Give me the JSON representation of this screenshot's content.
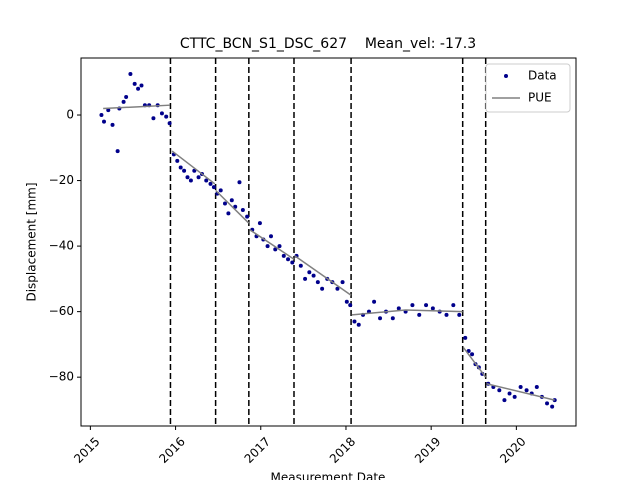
{
  "chart_data": {
    "type": "scatter",
    "title": "CTTC_BCN_S1_DSC_627    Mean_vel: -17.3",
    "x_label": "Measurement Date",
    "y_label": "Displacement [mm]",
    "xlim": [
      2014.89,
      2020.7
    ],
    "ylim": [
      -94.9,
      17.4
    ],
    "xticks": [
      2015,
      2016,
      2017,
      2018,
      2019,
      2020
    ],
    "yticks": [
      {
        "value": -80,
        "label": "−80"
      },
      {
        "value": -60,
        "label": "−60"
      },
      {
        "value": -40,
        "label": "−40"
      },
      {
        "value": -20,
        "label": "−20"
      },
      0
    ],
    "legend": "upper right",
    "vlines": [
      2015.94,
      2016.47,
      2016.86,
      2017.39,
      2018.06,
      2019.37,
      2019.64
    ],
    "series": [
      {
        "name": "Data",
        "color": "#00008b",
        "x": [
          2015.13,
          2015.16,
          2015.21,
          2015.26,
          2015.32,
          2015.34,
          2015.39,
          2015.42,
          2015.47,
          2015.52,
          2015.56,
          2015.6,
          2015.64,
          2015.69,
          2015.74,
          2015.79,
          2015.84,
          2015.89,
          2015.93,
          2015.98,
          2016.02,
          2016.06,
          2016.1,
          2016.14,
          2016.18,
          2016.22,
          2016.27,
          2016.31,
          2016.36,
          2016.41,
          2016.45,
          2016.49,
          2016.53,
          2016.58,
          2016.62,
          2016.66,
          2016.7,
          2016.75,
          2016.79,
          2016.84,
          2016.9,
          2016.95,
          2016.99,
          2017.03,
          2017.08,
          2017.12,
          2017.17,
          2017.22,
          2017.27,
          2017.32,
          2017.37,
          2017.42,
          2017.47,
          2017.52,
          2017.57,
          2017.62,
          2017.67,
          2017.72,
          2017.78,
          2017.84,
          2017.9,
          2017.96,
          2018.01,
          2018.05,
          2018.1,
          2018.15,
          2018.2,
          2018.27,
          2018.33,
          2018.4,
          2018.47,
          2018.55,
          2018.62,
          2018.7,
          2018.78,
          2018.86,
          2018.94,
          2019.02,
          2019.1,
          2019.18,
          2019.26,
          2019.33,
          2019.4,
          2019.44,
          2019.48,
          2019.52,
          2019.56,
          2019.6,
          2019.67,
          2019.73,
          2019.8,
          2019.86,
          2019.92,
          2019.98,
          2020.05,
          2020.12,
          2020.18,
          2020.24,
          2020.3,
          2020.36,
          2020.42,
          2020.45
        ],
        "values": [
          0,
          -2,
          1.5,
          -3,
          -11,
          2,
          4,
          5.5,
          12.5,
          9.5,
          8,
          9,
          3,
          3,
          -1,
          3,
          0.5,
          -0.5,
          -2.5,
          -12,
          -14,
          -16,
          -17,
          -19,
          -20,
          -17,
          -19,
          -18,
          -20,
          -21,
          -22,
          -24,
          -23,
          -27,
          -30,
          -26,
          -28,
          -20.5,
          -29,
          -31,
          -35,
          -37,
          -33,
          -38,
          -40,
          -37,
          -41,
          -40,
          -43,
          -44,
          -45,
          -43,
          -46,
          -50,
          -48,
          -49,
          -51,
          -53,
          -50,
          -51,
          -53,
          -51,
          -57,
          -58,
          -63,
          -64,
          -61,
          -60,
          -57,
          -62,
          -60,
          -62,
          -59,
          -60,
          -58,
          -61,
          -58,
          -59,
          -60,
          -61,
          -58,
          -61,
          -68,
          -72,
          -73,
          -76,
          -77,
          -79,
          -82,
          -83,
          -84,
          -87,
          -85,
          -86,
          -83,
          -84,
          -85,
          -83,
          -86,
          -88,
          -89,
          -87
        ]
      },
      {
        "name": "PUE",
        "color": "#808080",
        "type": "line",
        "x": [
          2015.15,
          2015.55,
          2015.93,
          null,
          2015.96,
          2016.46,
          null,
          2016.47,
          2016.86,
          null,
          2016.87,
          2017.39,
          null,
          2017.4,
          2018.06,
          null,
          2018.07,
          2018.7,
          2019.37,
          null,
          2019.38,
          2019.64,
          null,
          2019.65,
          2020.45
        ],
        "values": [
          2,
          2.5,
          3,
          null,
          -11,
          -21,
          null,
          -23,
          -33,
          null,
          -35,
          -44,
          null,
          -43,
          -55,
          null,
          -61,
          -59.5,
          -60,
          null,
          -71,
          -80,
          null,
          -82,
          -87
        ]
      }
    ]
  }
}
